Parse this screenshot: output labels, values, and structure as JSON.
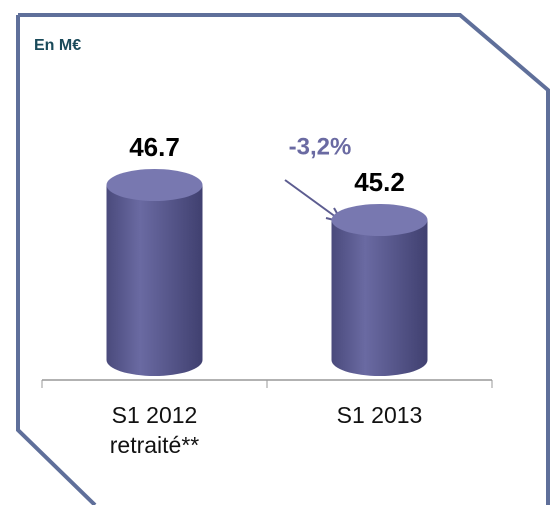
{
  "chart_data": {
    "type": "bar",
    "subtitle": "En M€",
    "annotation": "-3,2%",
    "categories": [
      "S1 2012 retraité**",
      "S1 2013"
    ],
    "values": [
      46.7,
      45.2
    ],
    "color": "#5c5c90",
    "ylim": [
      39.2,
      48.2
    ]
  }
}
